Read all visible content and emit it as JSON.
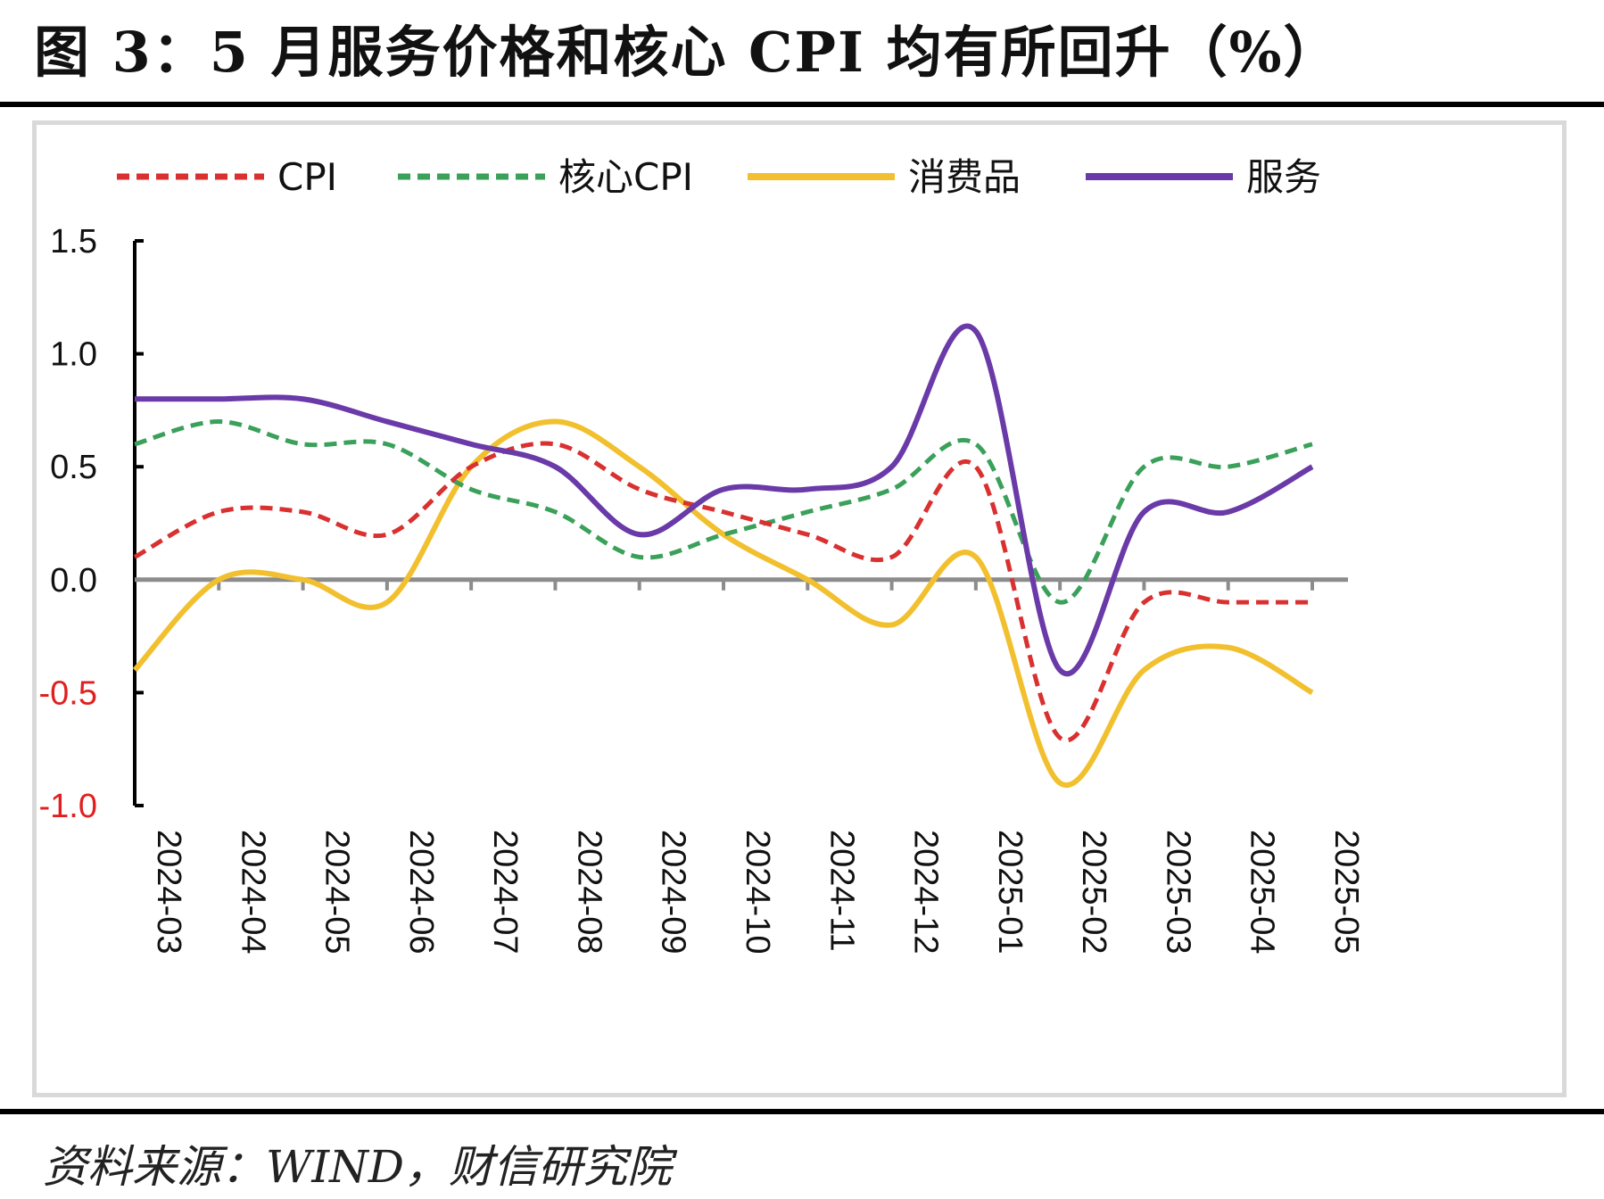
{
  "title": "图 3：5 月服务价格和核心 CPI 均有所回升（%）",
  "source": "资料来源：WIND，财信研究院",
  "chart_data": {
    "type": "line",
    "x": [
      "2024-03",
      "2024-04",
      "2024-05",
      "2024-06",
      "2024-07",
      "2024-08",
      "2024-09",
      "2024-10",
      "2024-11",
      "2024-12",
      "2025-01",
      "2025-02",
      "2025-03",
      "2025-04",
      "2025-05"
    ],
    "ylim": [
      -1.0,
      1.5
    ],
    "yticks": [
      "1.5",
      "1.0",
      "0.5",
      "0.0",
      "-0.5",
      "-1.0"
    ],
    "ytick_values": [
      1.5,
      1.0,
      0.5,
      0.0,
      -0.5,
      -1.0
    ],
    "negative_tick_color": "#e02020",
    "legend_position": "top",
    "grid": false,
    "series": [
      {
        "name": "CPI",
        "color": "#d93030",
        "dash": true,
        "values": [
          0.1,
          0.3,
          0.3,
          0.2,
          0.5,
          0.6,
          0.4,
          0.3,
          0.2,
          0.1,
          0.5,
          -0.7,
          -0.1,
          -0.1,
          -0.1
        ]
      },
      {
        "name": "核心CPI",
        "color": "#3aa05a",
        "dash": true,
        "values": [
          0.6,
          0.7,
          0.6,
          0.6,
          0.4,
          0.3,
          0.1,
          0.2,
          0.3,
          0.4,
          0.6,
          -0.1,
          0.5,
          0.5,
          0.6
        ]
      },
      {
        "name": "消费品",
        "color": "#f2c02e",
        "dash": false,
        "values": [
          -0.4,
          0.0,
          0.0,
          -0.1,
          0.5,
          0.7,
          0.5,
          0.2,
          0.0,
          -0.2,
          0.1,
          -0.9,
          -0.4,
          -0.3,
          -0.5
        ]
      },
      {
        "name": "服务",
        "color": "#6a3aa8",
        "dash": false,
        "values": [
          0.8,
          0.8,
          0.8,
          0.7,
          0.6,
          0.5,
          0.2,
          0.4,
          0.4,
          0.5,
          1.1,
          -0.4,
          0.3,
          0.3,
          0.5
        ]
      }
    ]
  }
}
